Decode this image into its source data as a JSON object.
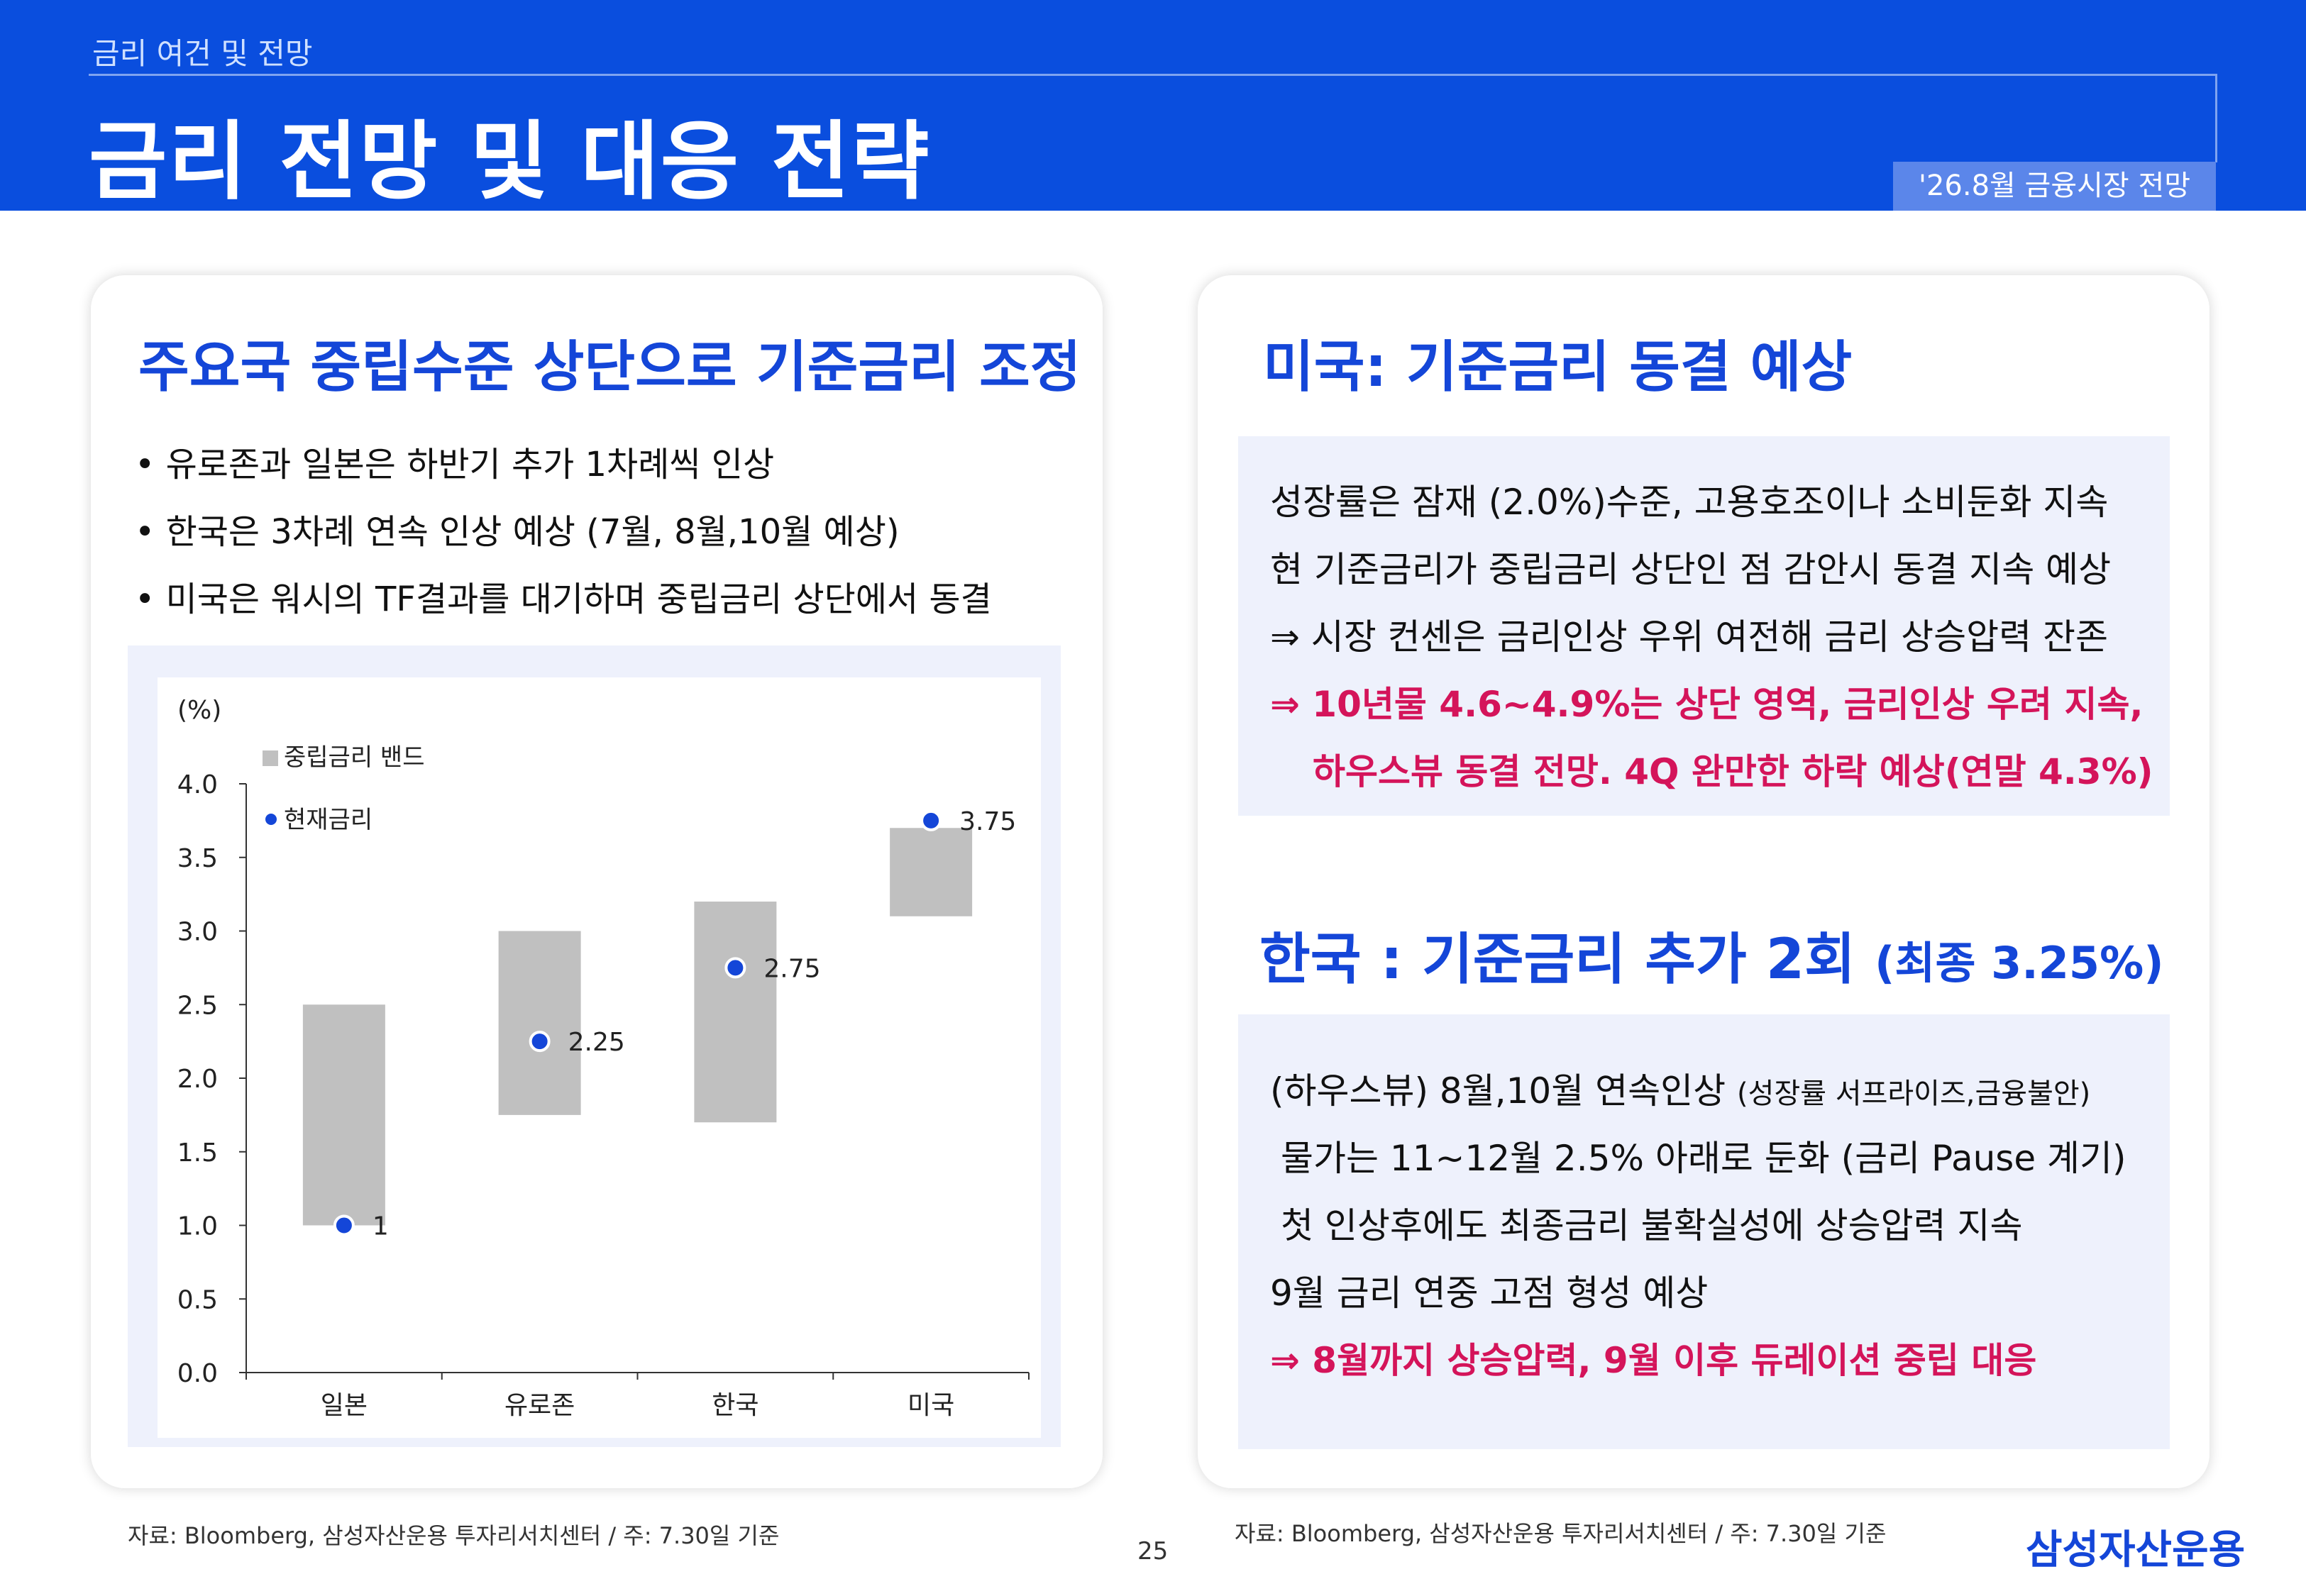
{
  "header": {
    "section": "금리 여건 및 전망",
    "title": "금리 전망 및 대응 전략",
    "tag": "'26.8월 금융시장 전망"
  },
  "left": {
    "title": "주요국 중립수준 상단으로 기준금리 조정",
    "bullets": [
      "• 유로존과 일본은 하반기 추가 1차례씩 인상",
      "• 한국은 3차례 연속 인상 예상 (7월, 8월,10월 예상)",
      "• 미국은 워시의 TF결과를 대기하며 중립금리 상단에서 동결"
    ],
    "source": "자료: Bloomberg, 삼성자산운용 투자리서치센터 / 주: 7.30일 기준"
  },
  "chart_data": {
    "type": "bar",
    "ylabel": "(%)",
    "ylim": [
      0,
      4.0
    ],
    "yticks": [
      "0.0",
      "0.5",
      "1.0",
      "1.5",
      "2.0",
      "2.5",
      "3.0",
      "3.5",
      "4.0"
    ],
    "categories": [
      "일본",
      "유로존",
      "한국",
      "미국"
    ],
    "series": [
      {
        "name": "중립금리 밴드",
        "kind": "range",
        "low": [
          1.0,
          1.75,
          1.7,
          3.1
        ],
        "high": [
          2.5,
          3.0,
          3.2,
          3.7
        ],
        "color": "#c0c0c0"
      },
      {
        "name": "현재금리",
        "kind": "point",
        "values": [
          1,
          2.25,
          2.75,
          3.75
        ],
        "labels": [
          "1",
          "2.25",
          "2.75",
          "3.75"
        ],
        "color": "#1446d8"
      }
    ],
    "legend": "top-left"
  },
  "right": {
    "us_title": "미국: 기준금리 동결 예상",
    "us_lines": [
      "성장률은 잠재 (2.0%)수준, 고용호조이나 소비둔화 지속",
      "현 기준금리가 중립금리 상단인 점 감안시 동결 지속 예상",
      "⇒ 시장 컨센은 금리인상 우위 여전해 금리 상승압력 잔존"
    ],
    "us_hl": [
      "⇒ 10년물 4.6~4.9%는 상단 영역, 금리인상 우려 지속,",
      "하우스뷰 동결 전망. 4Q 완만한 하락 예상(연말 4.3%)"
    ],
    "kr_title": "한국 : 기준금리 추가 2회",
    "kr_title_sub": "(최종 3.25%)",
    "kr_line1": "(하우스뷰) 8월,10월 연속인상",
    "kr_line1_small": "(성장률 서프라이즈,금융불안)",
    "kr_lines": [
      "물가는 11~12월 2.5% 아래로 둔화 (금리 Pause 계기)",
      "첫 인상후에도 최종금리 불확실성에 상승압력 지속",
      "9월 금리 연중 고점 형성 예상"
    ],
    "kr_hl": "⇒ 8월까지 상승압력, 9월 이후 듀레이션 중립 대응",
    "source": "자료: Bloomberg, 삼성자산운용 투자리서치센터 / 주: 7.30일 기준"
  },
  "footer": {
    "page": "25",
    "logo": "삼성자산운용"
  },
  "colors": {
    "brand_blue": "#0a4ede",
    "title_blue": "#1446d8",
    "highlight": "#d4145a",
    "panel": "#eef1fc"
  }
}
